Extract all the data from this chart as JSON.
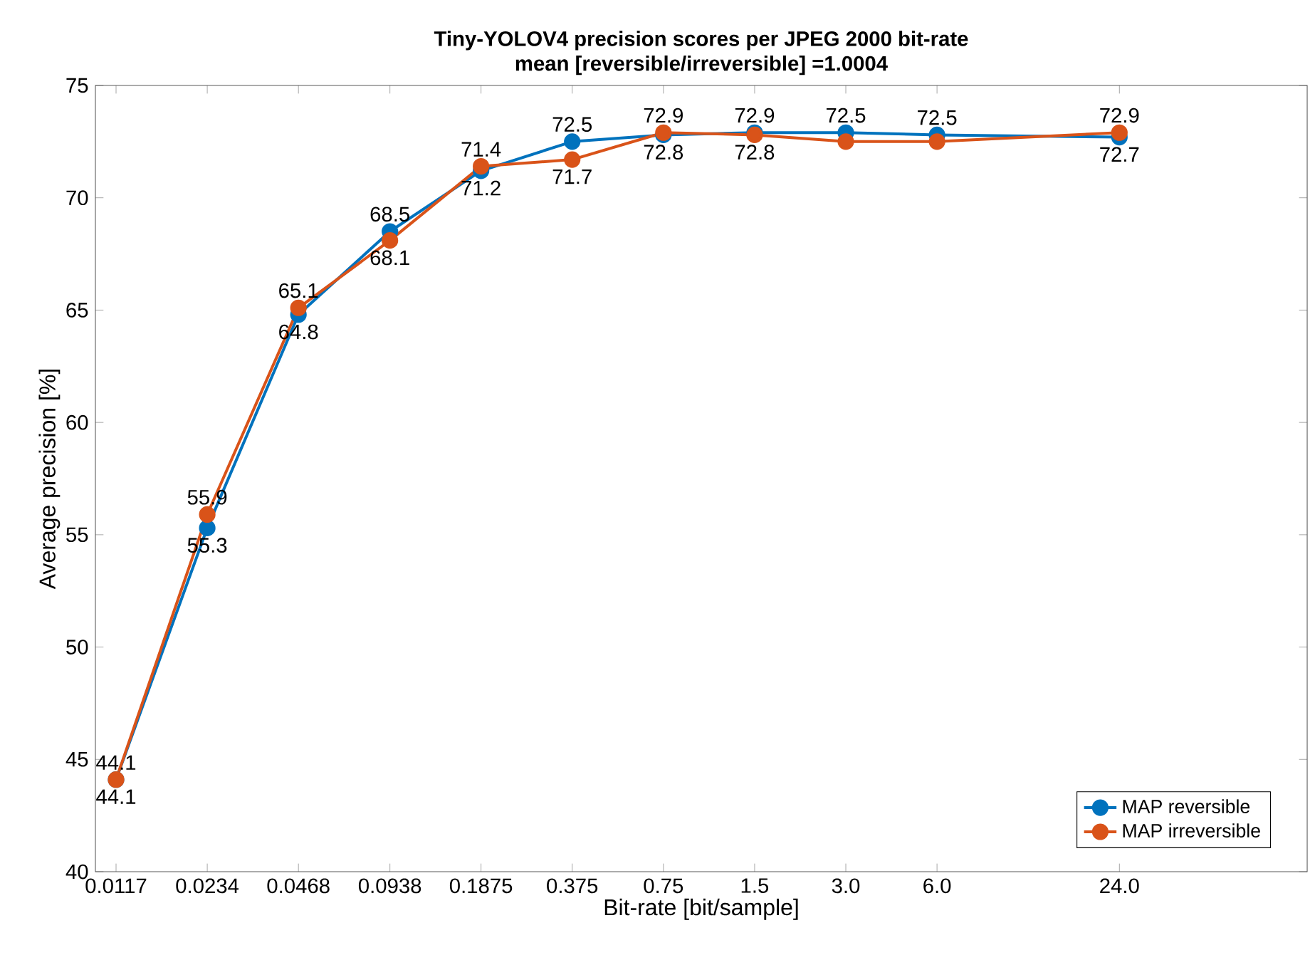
{
  "chart_data": {
    "type": "line",
    "title": "Tiny-YOLOV4 precision scores per JPEG 2000 bit-rate",
    "subtitle": "mean [reversible/irreversible] =1.0004",
    "xlabel": "Bit-rate [bit/sample]",
    "ylabel": "Average precision [%]",
    "x": [
      0.0117,
      0.0234,
      0.0468,
      0.0938,
      0.1875,
      0.375,
      0.75,
      1.5,
      3.0,
      6.0,
      24.0
    ],
    "series": [
      {
        "name": "MAP reversible",
        "color": "#0072bd",
        "values": [
          44.1,
          55.3,
          64.8,
          68.5,
          71.2,
          72.5,
          72.8,
          72.9,
          72.9,
          72.8,
          72.7
        ],
        "value_labels": [
          "44.1",
          "55.3",
          "64.8",
          "68.5",
          "71.2",
          "72.5",
          "72.8",
          "72.9",
          null,
          null,
          "72.7"
        ]
      },
      {
        "name": "MAP irreversible",
        "color": "#d95319",
        "values": [
          44.1,
          55.9,
          65.1,
          68.1,
          71.4,
          71.7,
          72.9,
          72.8,
          72.5,
          72.5,
          72.9
        ],
        "value_labels": [
          "44.1",
          "55.9",
          "65.1",
          "68.1",
          "71.4",
          "71.7",
          "72.9",
          "72.8",
          "72.5",
          "72.5",
          "72.9"
        ]
      }
    ],
    "log": "x",
    "xlim": [
      0.01,
      100
    ],
    "ylim": [
      40,
      75
    ],
    "xticks": [
      0.0117,
      0.0234,
      0.0468,
      0.0938,
      0.1875,
      0.375,
      0.75,
      1.5,
      {
        "value": 3.0,
        "label": "3.0"
      },
      {
        "value": 6.0,
        "label": "6.0"
      },
      {
        "value": 24.0,
        "label": "24.0"
      }
    ],
    "yticks": [
      40,
      45,
      50,
      55,
      60,
      65,
      70,
      75
    ],
    "grid": false,
    "legend": "bottom right",
    "marker": "circle",
    "line_style": "solid"
  }
}
